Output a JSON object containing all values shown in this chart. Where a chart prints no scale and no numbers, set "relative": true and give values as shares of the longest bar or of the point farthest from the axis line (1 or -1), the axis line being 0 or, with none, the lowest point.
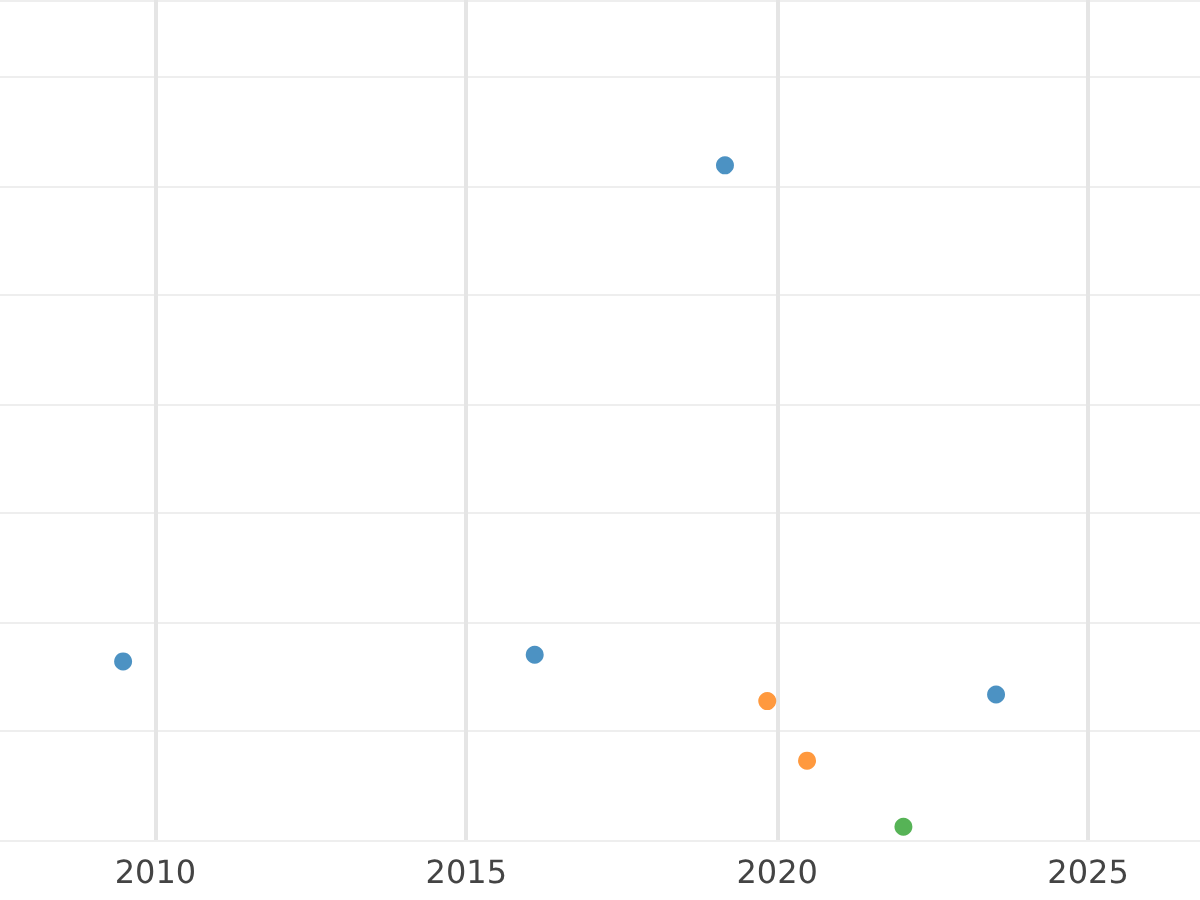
{
  "chart_data": {
    "type": "scatter",
    "relative": true,
    "xlim": [
      2007.5,
      2026.8
    ],
    "xticks": [
      2010,
      2015,
      2020,
      2025
    ],
    "grid": true,
    "marker": "circle",
    "series": [
      {
        "color": "#1f77b4",
        "x": [
          2009.48,
          2016.1,
          2019.16,
          2023.52
        ],
        "values": [
          0.25,
          0.26,
          1,
          0.2
        ]
      },
      {
        "color": "#ff7f0e",
        "x": [
          2019.84,
          2020.48
        ],
        "values": [
          0.19,
          0.1
        ]
      },
      {
        "color": "#2ca02c",
        "x": [
          2022.03
        ],
        "values": [
          0
        ]
      }
    ]
  }
}
